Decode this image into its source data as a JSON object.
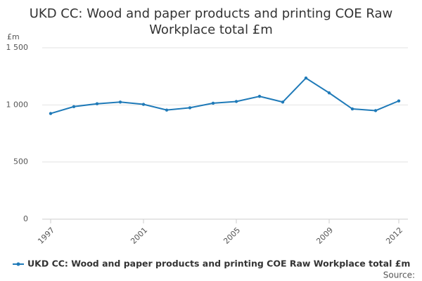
{
  "chart_data": {
    "type": "line",
    "title": "UKD CC: Wood and paper products and printing COE Raw Workplace total £m",
    "y_axis_label": "£m",
    "x": [
      1997,
      1998,
      1999,
      2000,
      2001,
      2002,
      2003,
      2004,
      2005,
      2006,
      2007,
      2008,
      2009,
      2010,
      2011,
      2012
    ],
    "series": [
      {
        "name": "UKD CC: Wood and paper products and printing COE Raw Workplace total £m",
        "color": "#1f7ab8",
        "values": [
          925,
          985,
          1010,
          1025,
          1005,
          955,
          975,
          1015,
          1030,
          1075,
          1025,
          1235,
          1105,
          965,
          950,
          1035
        ]
      }
    ],
    "xlim": [
      1997,
      2012
    ],
    "xticks": [
      1997,
      2001,
      2005,
      2009,
      2012
    ],
    "ylim": [
      0,
      1500
    ],
    "yticks": [
      0,
      500,
      {
        "value": 1000,
        "label": "1 000"
      },
      {
        "value": 1500,
        "label": "1 500"
      }
    ],
    "grid": true,
    "legend": "bottom",
    "source": "Source:"
  }
}
